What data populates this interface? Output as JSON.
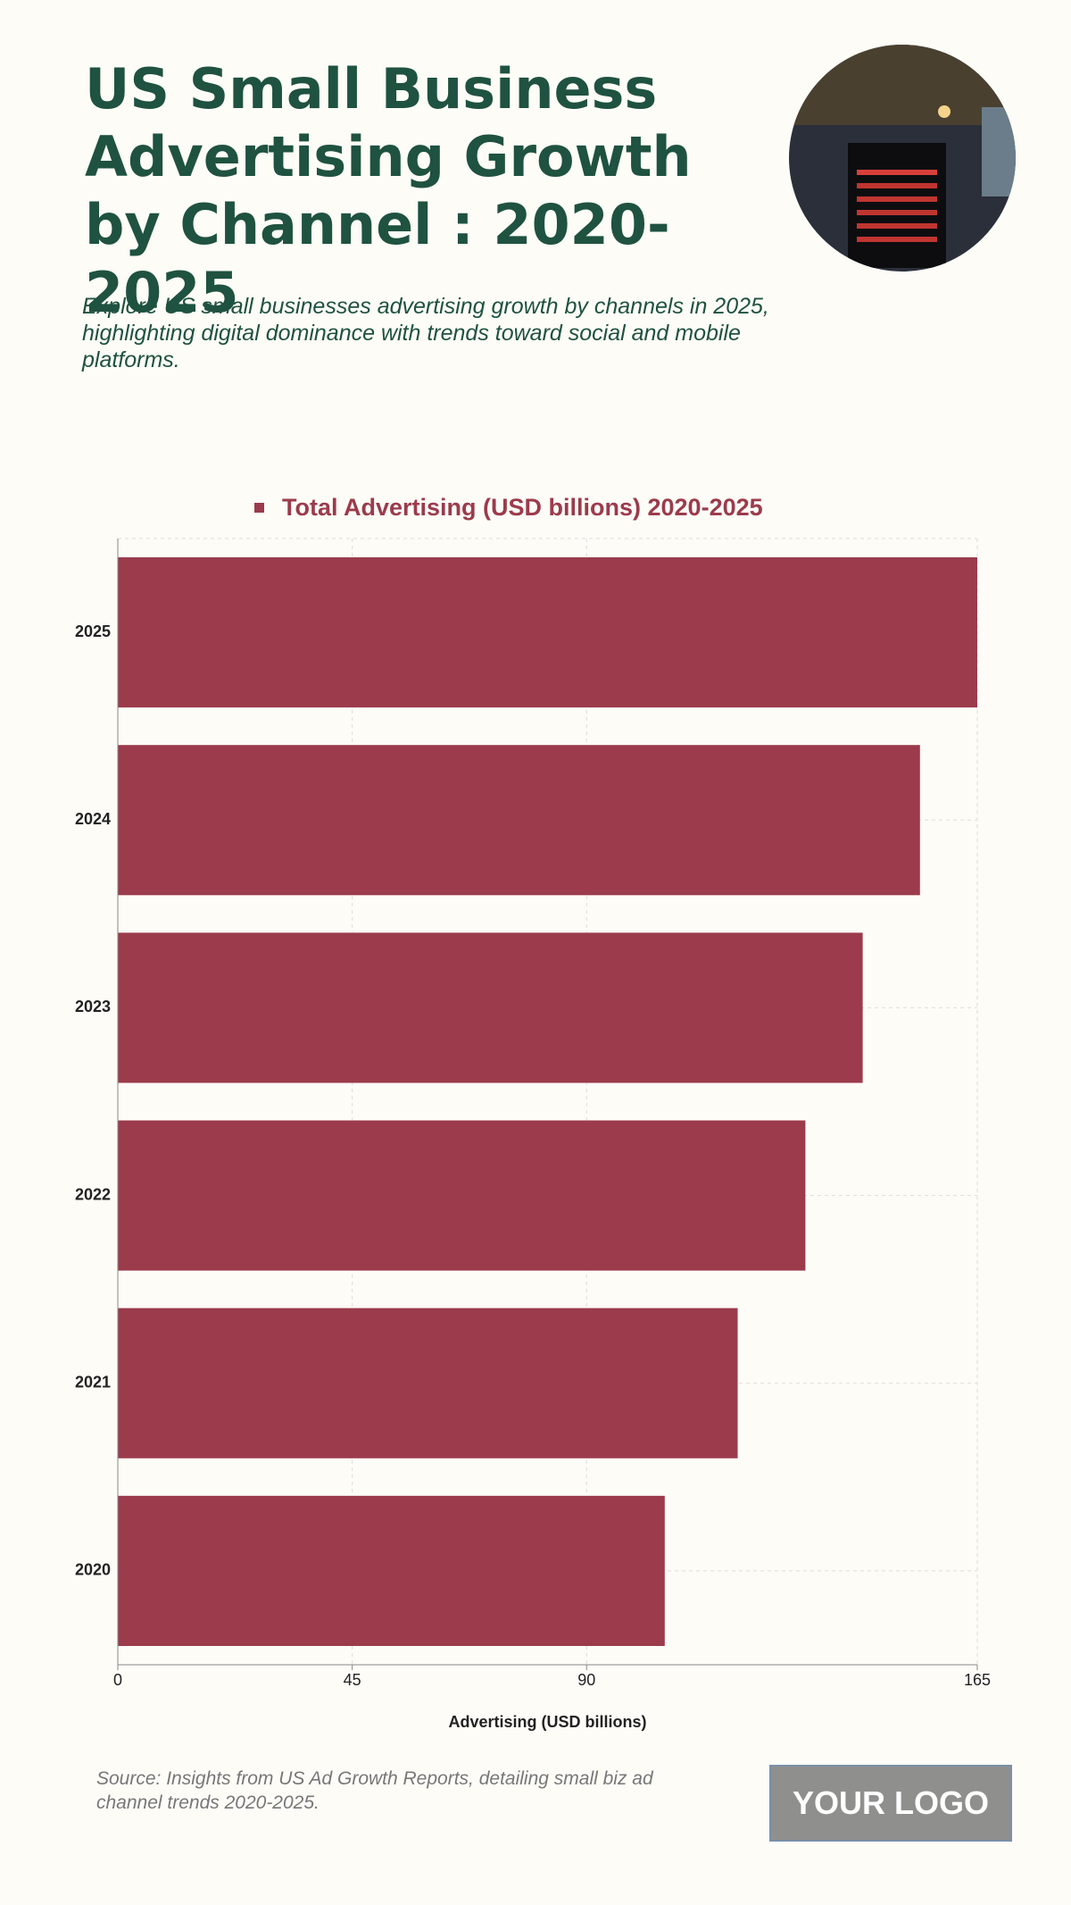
{
  "chart_data": {
    "type": "bar",
    "orientation": "horizontal",
    "title": "US Small Business Advertising Growth by Channel : 2020-2025",
    "subtitle": "Explore US small businesses advertising growth by channels in 2025, highlighting digital dominance with trends toward social and mobile platforms.",
    "categories": [
      "2025",
      "2024",
      "2023",
      "2022",
      "2021",
      "2020"
    ],
    "series": [
      {
        "name": "Total Advertising (USD billions) 2020-2025",
        "color": "#9b3b4c",
        "values": [
          165,
          154,
          143,
          132,
          119,
          105
        ]
      }
    ],
    "xlabel": "Advertising (USD billions)",
    "xlim": [
      0,
      165
    ],
    "xticks": [
      0,
      45,
      90,
      165
    ],
    "grid": true,
    "source": "Source: Insights from US Ad Growth Reports, detailing small biz ad channel trends 2020-2025.",
    "logo": "YOUR LOGO"
  }
}
